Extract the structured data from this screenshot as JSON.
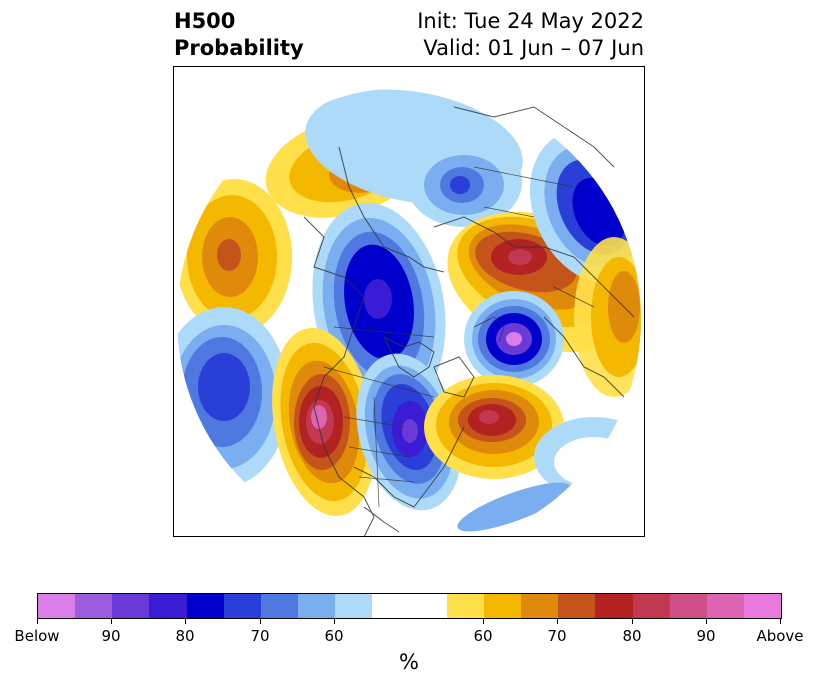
{
  "header": {
    "variable": "H500",
    "field": "Probability",
    "init": "Init: Tue 24 May 2022",
    "valid": "Valid: 01 Jun – 07 Jun"
  },
  "map": {
    "projection": "north-polar-stereographic",
    "features": [
      "coastlines",
      "country-borders",
      "state-borders"
    ],
    "anomaly_regions": [
      {
        "name": "northeast-pacific",
        "category": "above",
        "level": "Above"
      },
      {
        "name": "western-north-america",
        "category": "below",
        "level": "90"
      },
      {
        "name": "eastern-north-america",
        "category": "below",
        "level": "90"
      },
      {
        "name": "north-atlantic",
        "category": "above",
        "level": "80"
      },
      {
        "name": "greenland-arctic",
        "category": "below",
        "level": "Below"
      },
      {
        "name": "scandinavia-western-russia",
        "category": "above",
        "level": "90"
      },
      {
        "name": "siberia",
        "category": "below",
        "level": "80"
      },
      {
        "name": "east-siberia-kamchatka",
        "category": "above",
        "level": "70"
      },
      {
        "name": "bering-sea",
        "category": "above",
        "level": "80"
      },
      {
        "name": "north-pacific-east-asia",
        "category": "below",
        "level": "70"
      },
      {
        "name": "north-pole-ring",
        "category": "below",
        "level": "60"
      }
    ]
  },
  "colorbar": {
    "colors": [
      "#d97ee8",
      "#9c5ce0",
      "#6a3ad8",
      "#3a1cd4",
      "#0000cc",
      "#2a3ed8",
      "#4f78e0",
      "#7aaef0",
      "#addaf8",
      "#ffffff",
      "#ffffff",
      "#ffe04a",
      "#f5b800",
      "#e08a0c",
      "#c4541a",
      "#b22222",
      "#c23850",
      "#cf5088",
      "#dc64b0",
      "#e878dc"
    ],
    "tick_labels": [
      "Below",
      "90",
      "80",
      "70",
      "60",
      "60",
      "70",
      "80",
      "90",
      "Above"
    ],
    "unit": "%"
  }
}
